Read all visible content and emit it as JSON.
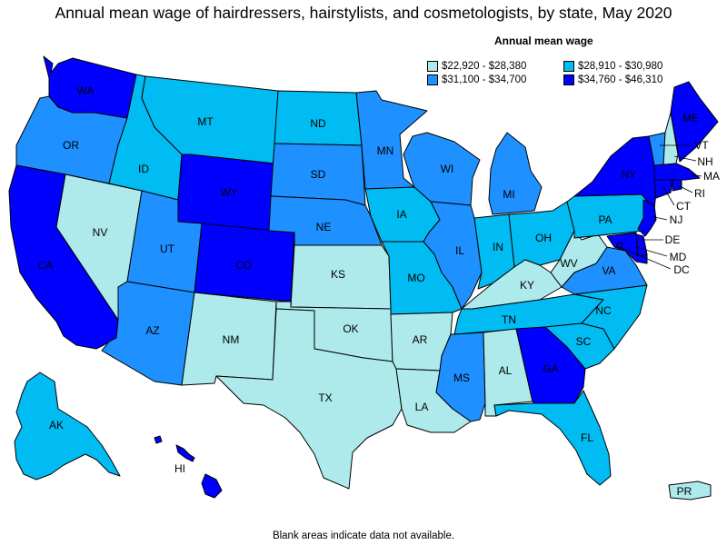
{
  "title": "Annual mean wage of hairdressers, hairstylists, and cosmetologists, by state, May 2020",
  "legend": {
    "title": "Annual mean wage",
    "items": [
      {
        "label": "$22,920 - $28,380",
        "color": "#aeeaec"
      },
      {
        "label": "$28,910 - $30,980",
        "color": "#00bcf2"
      },
      {
        "label": "$31,100 - $34,700",
        "color": "#1e90ff"
      },
      {
        "label": "$34,760 - $46,310",
        "color": "#0000ff"
      }
    ]
  },
  "footnote": "Blank areas indicate data not available.",
  "states": {
    "WA": {
      "label": "WA",
      "tier": 4
    },
    "OR": {
      "label": "OR",
      "tier": 3
    },
    "CA": {
      "label": "CA",
      "tier": 4
    },
    "NV": {
      "label": "NV",
      "tier": 1
    },
    "ID": {
      "label": "ID",
      "tier": 2
    },
    "MT": {
      "label": "MT",
      "tier": 2
    },
    "WY": {
      "label": "WY",
      "tier": 4
    },
    "UT": {
      "label": "UT",
      "tier": 3
    },
    "AZ": {
      "label": "AZ",
      "tier": 3
    },
    "CO": {
      "label": "CO",
      "tier": 4
    },
    "NM": {
      "label": "NM",
      "tier": 1
    },
    "ND": {
      "label": "ND",
      "tier": 2
    },
    "SD": {
      "label": "SD",
      "tier": 3
    },
    "NE": {
      "label": "NE",
      "tier": 3
    },
    "KS": {
      "label": "KS",
      "tier": 1
    },
    "OK": {
      "label": "OK",
      "tier": 1
    },
    "TX": {
      "label": "TX",
      "tier": 1
    },
    "MN": {
      "label": "MN",
      "tier": 3
    },
    "IA": {
      "label": "IA",
      "tier": 2
    },
    "MO": {
      "label": "MO",
      "tier": 2
    },
    "AR": {
      "label": "AR",
      "tier": 1
    },
    "LA": {
      "label": "LA",
      "tier": 1
    },
    "WI": {
      "label": "WI",
      "tier": 3
    },
    "IL": {
      "label": "IL",
      "tier": 3
    },
    "MI": {
      "label": "MI",
      "tier": 3
    },
    "IN": {
      "label": "IN",
      "tier": 2
    },
    "OH": {
      "label": "OH",
      "tier": 2
    },
    "KY": {
      "label": "KY",
      "tier": 1
    },
    "TN": {
      "label": "TN",
      "tier": 2
    },
    "MS": {
      "label": "MS",
      "tier": 3
    },
    "AL": {
      "label": "AL",
      "tier": 1
    },
    "GA": {
      "label": "GA",
      "tier": 4
    },
    "FL": {
      "label": "FL",
      "tier": 2
    },
    "SC": {
      "label": "SC",
      "tier": 2
    },
    "NC": {
      "label": "NC",
      "tier": 2
    },
    "VA": {
      "label": "VA",
      "tier": 3
    },
    "WV": {
      "label": "WV",
      "tier": 1
    },
    "PA": {
      "label": "PA",
      "tier": 2
    },
    "NY": {
      "label": "NY",
      "tier": 4
    },
    "VT": {
      "label": "VT",
      "tier": 3
    },
    "NH": {
      "label": "NH",
      "tier": 1
    },
    "ME": {
      "label": "ME",
      "tier": 4
    },
    "MA": {
      "label": "MA",
      "tier": 4
    },
    "RI": {
      "label": "RI",
      "tier": 4
    },
    "CT": {
      "label": "CT",
      "tier": 4
    },
    "NJ": {
      "label": "NJ",
      "tier": 4
    },
    "DE": {
      "label": "DE",
      "tier": 4
    },
    "MD": {
      "label": "MD",
      "tier": 4
    },
    "DC": {
      "label": "DC",
      "tier": 4
    },
    "AK": {
      "label": "AK",
      "tier": 2
    },
    "HI": {
      "label": "HI",
      "tier": 4
    },
    "PR": {
      "label": "PR",
      "tier": 1
    }
  }
}
